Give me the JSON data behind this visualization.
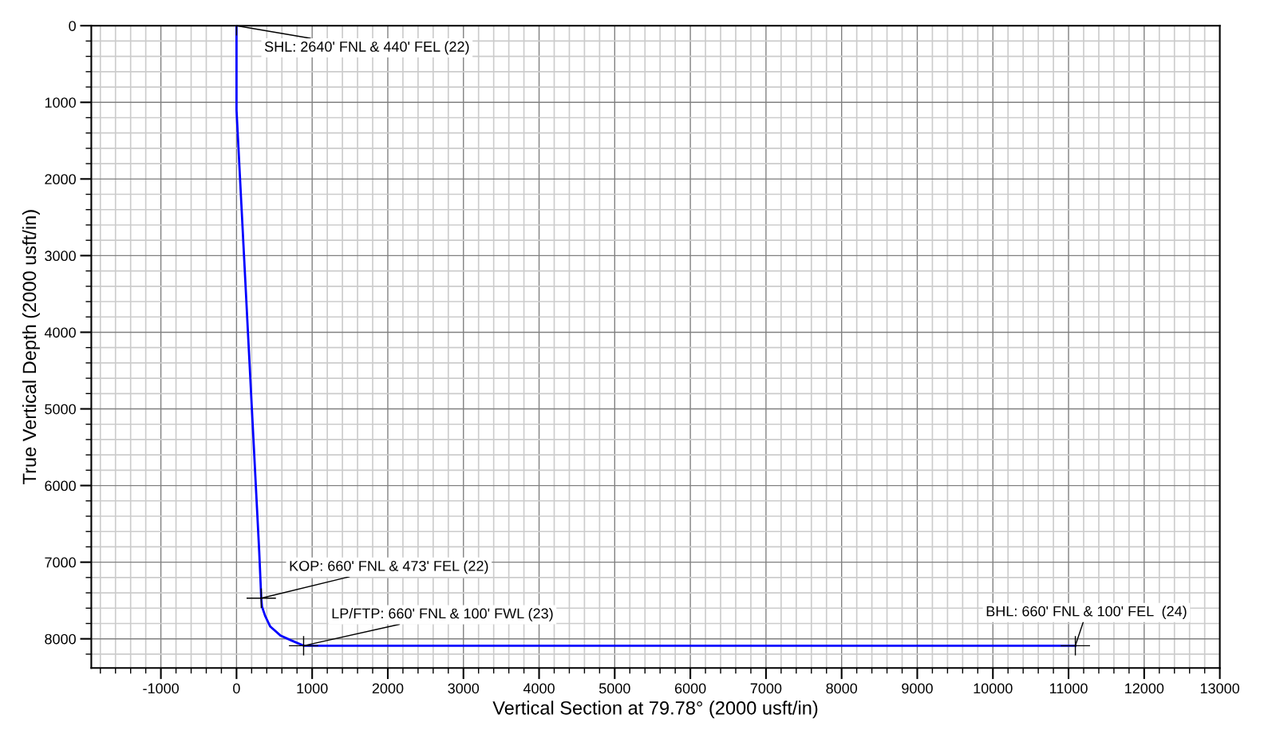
{
  "chart_data": {
    "type": "line",
    "xlabel": "Vertical Section at 79.78° (2000 usft/in)",
    "ylabel": "True Vertical Depth (2000 usft/in)",
    "series": [
      {
        "color": "#0000ff",
        "x": [
          0,
          0,
          100,
          200,
          300,
          327,
          337,
          378,
          446,
          585,
          722,
          887,
          1200,
          11090
        ],
        "values": [
          0,
          1100,
          3020,
          4940,
          6860,
          7470,
          7580,
          7700,
          7840,
          7960,
          8020,
          8090,
          8090,
          8090
        ]
      }
    ],
    "xlim": [
      -1920,
      13000
    ],
    "ylim": [
      8380,
      0
    ],
    "xticks": [
      -1000,
      0,
      1000,
      2000,
      3000,
      4000,
      5000,
      6000,
      7000,
      8000,
      9000,
      10000,
      11000,
      12000,
      13000
    ],
    "yticks": [
      0,
      1000,
      2000,
      3000,
      4000,
      5000,
      6000,
      7000,
      8000
    ],
    "grid": true,
    "marker": "none",
    "line_style": "solid",
    "annotations": [
      {
        "text": "SHL: 2640' FNL & 440' FEL (22)",
        "x": 0,
        "y": 0
      },
      {
        "text": "KOP: 660' FNL & 473' FEL (22)",
        "x": 327,
        "y": 7470
      },
      {
        "text": "LP/FTP: 660' FNL & 100' FWL (23)",
        "x": 887,
        "y": 8090
      },
      {
        "text": "BHL: 660' FNL & 100' FEL  (24)",
        "x": 11090,
        "y": 8090
      }
    ]
  }
}
